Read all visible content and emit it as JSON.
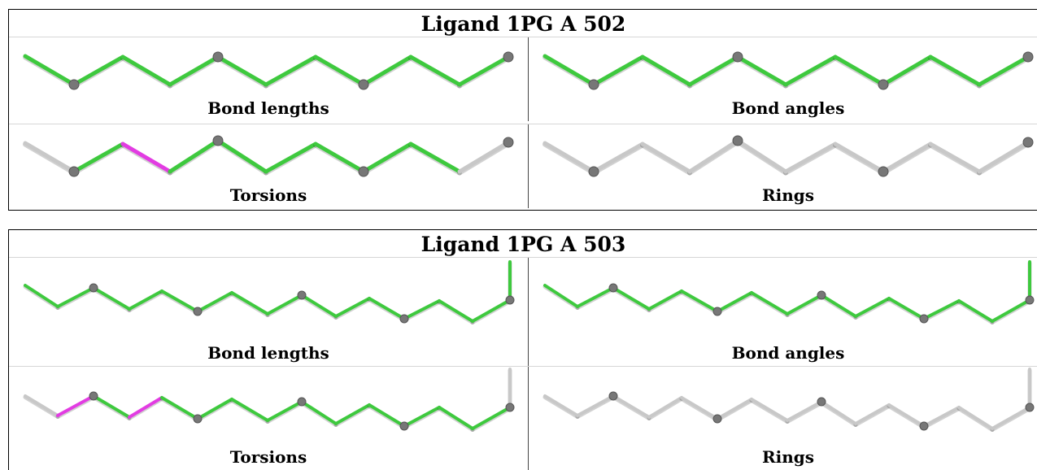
{
  "ligands": [
    {
      "title": "Ligand 1PG A 502",
      "panels": [
        {
          "caption": "Bond lengths",
          "bond_colors": [
            "green",
            "green",
            "green",
            "green",
            "green",
            "green",
            "green",
            "green",
            "green",
            "green"
          ]
        },
        {
          "caption": "Bond angles",
          "bond_colors": [
            "green",
            "green",
            "green",
            "green",
            "green",
            "green",
            "green",
            "green",
            "green",
            "green"
          ]
        },
        {
          "caption": "Torsions",
          "bond_colors": [
            "grey",
            "green",
            "magenta",
            "green",
            "green",
            "green",
            "green",
            "green",
            "green",
            "grey"
          ]
        },
        {
          "caption": "Rings",
          "bond_colors": [
            "grey",
            "grey",
            "grey",
            "grey",
            "grey",
            "grey",
            "grey",
            "grey",
            "grey",
            "grey"
          ]
        }
      ]
    },
    {
      "title": "Ligand 1PG A 503",
      "panels": [
        {
          "caption": "Bond lengths",
          "bond_colors": [
            "green",
            "green",
            "green",
            "green",
            "green",
            "green",
            "green",
            "green",
            "green",
            "green",
            "green",
            "green",
            "green",
            "green",
            "green"
          ]
        },
        {
          "caption": "Bond angles",
          "bond_colors": [
            "green",
            "green",
            "green",
            "green",
            "green",
            "green",
            "green",
            "green",
            "green",
            "green",
            "green",
            "green",
            "green",
            "green",
            "green"
          ]
        },
        {
          "caption": "Torsions",
          "bond_colors": [
            "grey",
            "magenta",
            "green",
            "magenta",
            "green",
            "green",
            "green",
            "green",
            "green",
            "green",
            "green",
            "green",
            "green",
            "green",
            "grey"
          ]
        },
        {
          "caption": "Rings",
          "bond_colors": [
            "grey",
            "grey",
            "grey",
            "grey",
            "grey",
            "grey",
            "grey",
            "grey",
            "grey",
            "grey",
            "grey",
            "grey",
            "grey",
            "grey",
            "grey"
          ]
        }
      ]
    }
  ],
  "colors": {
    "green": "#3ec93e",
    "magenta": "#e23ce2",
    "grey": "#c8c8c8",
    "atom": "#777777"
  }
}
